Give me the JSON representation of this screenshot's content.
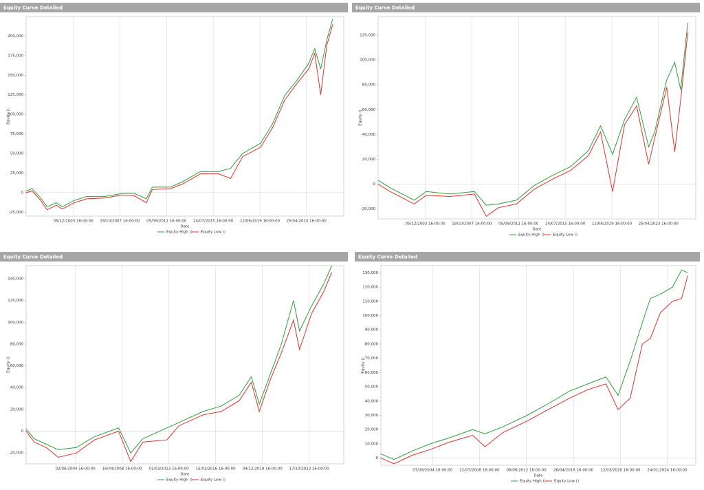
{
  "chart_data": [
    {
      "type": "line",
      "title": "Equity Curve Detailed",
      "x_label": "Date",
      "y_label": "Equity ()",
      "grid": "x",
      "xlim": [
        "2000-01-01",
        "2026-06-01"
      ],
      "ylim": [
        -30000,
        225000
      ],
      "xticks": [
        {
          "value": "2003-12-05",
          "label": "05/12/2003 16:00:00"
        },
        {
          "value": "2007-10-19",
          "label": "19/10/2007 16:00:00"
        },
        {
          "value": "2011-09-05",
          "label": "05/09/2011 16:00:00"
        },
        {
          "value": "2015-07-24",
          "label": "24/07/2015 16:00:00"
        },
        {
          "value": "2019-06-12",
          "label": "12/06/2019 16:00:00"
        },
        {
          "value": "2023-04-25",
          "label": "25/04/2023 16:00:00"
        }
      ],
      "yticks": [
        {
          "value": -25000,
          "label": "-25,000"
        },
        0,
        {
          "value": 25000,
          "label": "25,000"
        },
        {
          "value": 50000,
          "label": "50,000"
        },
        {
          "value": 75000,
          "label": "75,000"
        },
        {
          "value": 100000,
          "label": "100,000"
        },
        {
          "value": 125000,
          "label": "125,000"
        },
        {
          "value": 150000,
          "label": "150,000"
        },
        {
          "value": 175000,
          "label": "175,000"
        },
        {
          "value": 200000,
          "label": "200,000"
        }
      ],
      "x": [
        "2000-01-01",
        "2000-07-01",
        "2001-03-01",
        "2001-10-01",
        "2002-07-01",
        "2003-01-01",
        "2004-01-01",
        "2005-01-01",
        "2006-07-01",
        "2008-01-01",
        "2009-01-01",
        "2010-01-01",
        "2010-07-01",
        "2012-01-01",
        "2013-01-01",
        "2014-07-01",
        "2016-01-01",
        "2017-01-01",
        "2018-01-01",
        "2019-07-01",
        "2020-07-01",
        "2021-07-01",
        "2022-07-01",
        "2023-07-01",
        "2024-01-01",
        "2024-07-01",
        "2025-01-01",
        "2025-07-01"
      ],
      "series": [
        {
          "name": "Equity High ()",
          "color": "#2e9e3a",
          "values": [
            2000,
            5000,
            -6000,
            -18000,
            -13000,
            -18000,
            -10000,
            -5000,
            -5000,
            -1000,
            -1000,
            -8000,
            7000,
            7000,
            14000,
            27000,
            27000,
            31000,
            50000,
            63000,
            88000,
            124000,
            143000,
            165000,
            184000,
            158000,
            195000,
            222000
          ]
        },
        {
          "name": "Equity Low ()",
          "color": "#e0302a",
          "values": [
            0,
            2000,
            -9000,
            -22000,
            -16000,
            -21000,
            -13000,
            -8000,
            -7000,
            -3000,
            -4000,
            -13000,
            4000,
            5000,
            11000,
            24000,
            24000,
            18000,
            46000,
            58000,
            83000,
            118000,
            139000,
            158000,
            178000,
            125000,
            188000,
            215000
          ]
        }
      ]
    },
    {
      "type": "line",
      "title": "Equity Curve Detailed",
      "x_label": "Date",
      "y_label": "Equity ()",
      "grid": "x",
      "xlim": [
        "2000-01-01",
        "2026-06-01"
      ],
      "ylim": [
        -28000,
        135000
      ],
      "xticks": [
        {
          "value": "2003-12-05",
          "label": "05/12/2003 16:00:00"
        },
        {
          "value": "2007-10-19",
          "label": "19/10/2007 16:00:00"
        },
        {
          "value": "2011-09-05",
          "label": "05/09/2011 16:00:00"
        },
        {
          "value": "2015-07-24",
          "label": "24/07/2015 16:00:00"
        },
        {
          "value": "2019-06-12",
          "label": "12/06/2019 16:00:00"
        },
        {
          "value": "2023-04-25",
          "label": "25/04/2023 16:00:00"
        }
      ],
      "yticks": [
        {
          "value": -20000,
          "label": "-20,000"
        },
        0,
        {
          "value": 20000,
          "label": "20,000"
        },
        {
          "value": 40000,
          "label": "40,000"
        },
        {
          "value": 60000,
          "label": "60,000"
        },
        {
          "value": 80000,
          "label": "80,000"
        },
        {
          "value": 100000,
          "label": "100,000"
        },
        {
          "value": 120000,
          "label": "120,000"
        }
      ],
      "x": [
        "2000-01-01",
        "2001-01-01",
        "2002-01-01",
        "2003-01-01",
        "2004-01-01",
        "2006-01-01",
        "2008-01-01",
        "2009-01-01",
        "2010-01-01",
        "2011-07-01",
        "2013-01-01",
        "2014-07-01",
        "2016-01-01",
        "2017-07-01",
        "2018-07-01",
        "2019-07-01",
        "2020-07-01",
        "2021-07-01",
        "2022-07-01",
        "2023-01-01",
        "2024-01-01",
        "2024-09-01",
        "2025-03-01",
        "2025-10-01"
      ],
      "series": [
        {
          "name": "Equity High ()",
          "color": "#2e9e3a",
          "values": [
            3000,
            -3000,
            -8000,
            -13000,
            -6000,
            -8000,
            -6000,
            -17000,
            -16000,
            -13000,
            -1000,
            7000,
            14000,
            27000,
            47000,
            24000,
            52000,
            70000,
            30000,
            42000,
            84000,
            98000,
            76000,
            130000
          ]
        },
        {
          "name": "Equity Low ()",
          "color": "#e0302a",
          "values": [
            0,
            -6000,
            -11000,
            -16000,
            -9000,
            -10000,
            -8000,
            -26000,
            -19000,
            -16000,
            -4000,
            4000,
            11000,
            23000,
            42000,
            -6000,
            48000,
            63000,
            16000,
            37000,
            78000,
            26000,
            68000,
            122000
          ]
        }
      ]
    },
    {
      "type": "line",
      "title": "Equity Curve Detailed",
      "x_label": "Date",
      "y_label": "Equity ()",
      "grid": "x",
      "xlim": [
        "2000-05-01",
        "2026-09-01"
      ],
      "ylim": [
        -30000,
        152000
      ],
      "xticks": [
        {
          "value": "2004-06-02",
          "label": "02/06/2004 16:00:00"
        },
        {
          "value": "2008-04-16",
          "label": "16/04/2008 16:00:00"
        },
        {
          "value": "2012-03-01",
          "label": "01/03/2012 16:00:00"
        },
        {
          "value": "2016-01-15",
          "label": "15/01/2016 16:00:00"
        },
        {
          "value": "2019-12-04",
          "label": "04/12/2019 16:00:00"
        },
        {
          "value": "2023-10-17",
          "label": "17/10/2023 16:00:00"
        }
      ],
      "yticks": [
        {
          "value": -20000,
          "label": "-20,000"
        },
        0,
        {
          "value": 20000,
          "label": "20,000"
        },
        {
          "value": 40000,
          "label": "40,000"
        },
        {
          "value": 60000,
          "label": "60,000"
        },
        {
          "value": 80000,
          "label": "80,000"
        },
        {
          "value": 100000,
          "label": "100,000"
        },
        {
          "value": 120000,
          "label": "120,000"
        },
        {
          "value": 140000,
          "label": "140,000"
        }
      ],
      "x": [
        "2000-05-01",
        "2001-01-01",
        "2002-01-01",
        "2003-01-01",
        "2004-07-01",
        "2006-01-01",
        "2008-01-01",
        "2009-01-01",
        "2010-01-01",
        "2012-01-01",
        "2013-01-01",
        "2015-01-01",
        "2016-07-01",
        "2018-01-01",
        "2019-01-01",
        "2019-09-01",
        "2020-07-01",
        "2021-07-01",
        "2022-07-01",
        "2023-01-01",
        "2024-01-01",
        "2025-01-01",
        "2025-09-01"
      ],
      "series": [
        {
          "name": "Equity High ()",
          "color": "#2e9e3a",
          "values": [
            2000,
            -7000,
            -12000,
            -17000,
            -15000,
            -5000,
            3000,
            -20000,
            -7000,
            3000,
            8000,
            18000,
            23000,
            33000,
            50000,
            25000,
            50000,
            80000,
            120000,
            92000,
            115000,
            135000,
            152000
          ]
        },
        {
          "name": "Equity Low ()",
          "color": "#e0302a",
          "values": [
            0,
            -10000,
            -15000,
            -24000,
            -20000,
            -8000,
            0,
            -28000,
            -10000,
            -8000,
            5000,
            15000,
            18000,
            28000,
            45000,
            18000,
            45000,
            72000,
            102000,
            75000,
            108000,
            128000,
            146000
          ]
        }
      ]
    },
    {
      "type": "line",
      "title": "Equity Curve Detailed",
      "x_label": "Date",
      "y_label": "Equity ()",
      "grid": "x",
      "xlim": [
        "2000-06-01",
        "2026-06-01"
      ],
      "ylim": [
        -5000,
        135000
      ],
      "xticks": [
        {
          "value": "2004-09-07",
          "label": "07/09/2004 16:00:00"
        },
        {
          "value": "2008-07-22",
          "label": "22/07/2008 16:00:00"
        },
        {
          "value": "2012-06-06",
          "label": "06/06/2012 16:00:00"
        },
        {
          "value": "2016-04-26",
          "label": "26/04/2016 16:00:00"
        },
        {
          "value": "2020-03-12",
          "label": "12/03/2020 16:00:00"
        },
        {
          "value": "2024-01-24",
          "label": "24/01/2024 16:00:00"
        }
      ],
      "yticks": [
        0,
        {
          "value": 10000,
          "label": "10,000"
        },
        {
          "value": 20000,
          "label": "20,000"
        },
        {
          "value": 30000,
          "label": "30,000"
        },
        {
          "value": 40000,
          "label": "40,000"
        },
        {
          "value": 50000,
          "label": "50,000"
        },
        {
          "value": 60000,
          "label": "60,000"
        },
        {
          "value": 70000,
          "label": "70,000"
        },
        {
          "value": 80000,
          "label": "80,000"
        },
        {
          "value": 90000,
          "label": "90,000"
        },
        {
          "value": 100000,
          "label": "100,000"
        },
        {
          "value": 110000,
          "label": "110,000"
        },
        {
          "value": 120000,
          "label": "120,000"
        },
        {
          "value": 130000,
          "label": "130,000"
        }
      ],
      "x": [
        "2000-06-01",
        "2001-07-01",
        "2003-01-01",
        "2004-07-01",
        "2006-01-01",
        "2008-01-01",
        "2009-01-01",
        "2010-07-01",
        "2012-07-01",
        "2014-01-01",
        "2016-01-01",
        "2017-07-01",
        "2019-01-01",
        "2020-01-01",
        "2021-01-01",
        "2022-01-01",
        "2022-09-01",
        "2023-07-01",
        "2024-07-01",
        "2025-04-01",
        "2025-10-01"
      ],
      "series": [
        {
          "name": "Equity High ()",
          "color": "#2e9e3a",
          "values": [
            3000,
            -1000,
            5000,
            10000,
            14000,
            20000,
            17000,
            22000,
            30000,
            37000,
            47000,
            52000,
            57000,
            44000,
            68000,
            95000,
            112000,
            115000,
            120000,
            132000,
            130000
          ]
        },
        {
          "name": "Equity Low ()",
          "color": "#e0302a",
          "values": [
            0,
            -4000,
            2000,
            6000,
            11000,
            16000,
            8000,
            18000,
            26000,
            33000,
            42000,
            48000,
            52000,
            34000,
            42000,
            80000,
            84000,
            102000,
            110000,
            112000,
            128000
          ]
        }
      ]
    }
  ]
}
